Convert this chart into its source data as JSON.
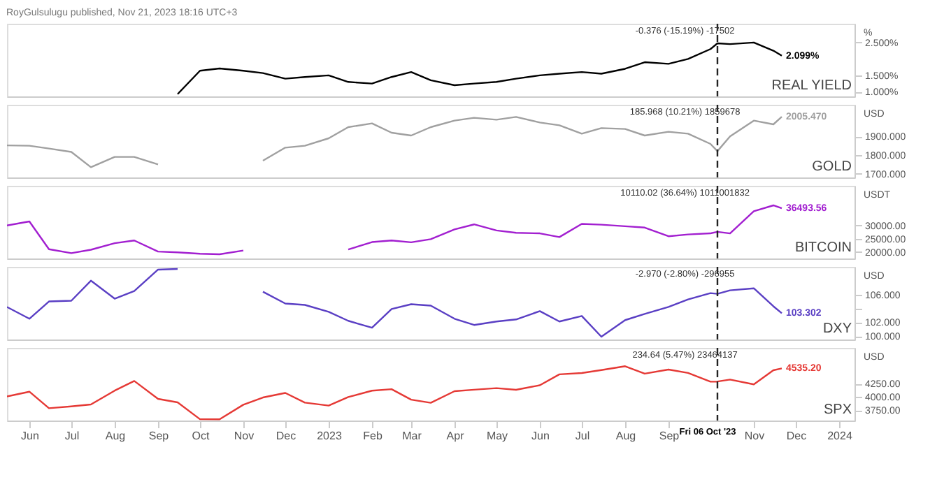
{
  "chart_data": [
    {
      "type": "line",
      "title": "REAL YIELD",
      "subtitle": "RoyGulsulugu published, Nov 21, 2023 18:16 UTC+3",
      "ylabel": "%",
      "tick_labels": "y",
      "xlim": [
        "2022-05-16",
        "2024-01-12"
      ],
      "ylim": [
        0.86,
        3.07
      ],
      "yticks": [
        {
          "value": 1.0,
          "label": "1.000%"
        },
        {
          "value": 1.5,
          "label": "1.500%"
        },
        {
          "value": 2.5,
          "label": "2.500%"
        }
      ],
      "x": [
        "2022-09-15",
        "2022-10-01",
        "2022-10-15",
        "2022-11-01",
        "2022-11-15",
        "2022-12-01",
        "2022-12-15",
        "2023-01-01",
        "2023-01-15",
        "2023-02-01",
        "2023-02-15",
        "2023-03-01",
        "2023-03-15",
        "2023-04-01",
        "2023-04-15",
        "2023-05-01",
        "2023-05-15",
        "2023-06-01",
        "2023-06-15",
        "2023-07-01",
        "2023-07-15",
        "2023-08-01",
        "2023-08-15",
        "2023-09-01",
        "2023-09-15",
        "2023-10-01",
        "2023-10-06",
        "2023-10-15",
        "2023-11-01",
        "2023-11-15",
        "2023-11-21"
      ],
      "series": [
        {
          "color": "#000000",
          "values": [
            0.93,
            1.64,
            1.71,
            1.64,
            1.57,
            1.4,
            1.45,
            1.5,
            1.3,
            1.25,
            1.45,
            1.6,
            1.35,
            1.2,
            1.25,
            1.3,
            1.4,
            1.5,
            1.55,
            1.6,
            1.55,
            1.7,
            1.9,
            1.85,
            2.0,
            2.3,
            2.475,
            2.45,
            2.5,
            2.25,
            2.099
          ],
          "value_labels": [
            null,
            null,
            null,
            null,
            null,
            null,
            null,
            null,
            null,
            null,
            null,
            null,
            null,
            null,
            null,
            null,
            null,
            null,
            null,
            null,
            null,
            null,
            null,
            null,
            null,
            null,
            null,
            null,
            null,
            null,
            "2.099%"
          ]
        }
      ],
      "ref_lines": [
        {
          "axis": "x",
          "value": "2023-10-06",
          "line_style": "dashed"
        }
      ],
      "annotations": [
        "-0.376 (-15.19%) -17502"
      ]
    },
    {
      "type": "line",
      "title": "GOLD",
      "ylabel": "USD",
      "tick_labels": "y",
      "xlim": [
        "2022-05-16",
        "2024-01-12"
      ],
      "ylim": [
        1680,
        2070
      ],
      "yticks": [
        {
          "value": 1700,
          "label": "1700.000"
        },
        {
          "value": 1800,
          "label": "1800.000"
        },
        {
          "value": 1900,
          "label": "1900.000"
        }
      ],
      "x": [
        "2022-05-16",
        "2022-06-01",
        "2022-06-15",
        "2022-07-01",
        "2022-07-15",
        "2022-08-01",
        "2022-08-15",
        "2022-09-01",
        "2022-09-15",
        "2022-10-01",
        "2022-10-15",
        "2022-11-01",
        "2022-11-15",
        "2022-12-01",
        "2022-12-15",
        "2023-01-01",
        "2023-01-15",
        "2023-02-01",
        "2023-02-15",
        "2023-03-01",
        "2023-03-15",
        "2023-04-01",
        "2023-04-15",
        "2023-05-01",
        "2023-05-15",
        "2023-06-01",
        "2023-06-15",
        "2023-07-01",
        "2023-07-15",
        "2023-08-01",
        "2023-08-15",
        "2023-09-01",
        "2023-09-15",
        "2023-10-01",
        "2023-10-06",
        "2023-10-15",
        "2023-11-01",
        "2023-11-15",
        "2023-11-21"
      ],
      "series": [
        {
          "color": "#a0a0a0",
          "values": [
            1852,
            1850,
            1835,
            1817,
            1735,
            1790,
            1790,
            1750,
            null,
            null,
            null,
            null,
            1770,
            1840,
            1850,
            1890,
            1950,
            1970,
            1920,
            1905,
            1950,
            1985,
            2000,
            1990,
            2005,
            1975,
            1960,
            1915,
            1945,
            1940,
            1905,
            1925,
            1915,
            1860,
            1821,
            1900,
            1985,
            1965,
            2005.47
          ],
          "value_labels": [
            null,
            null,
            null,
            null,
            null,
            null,
            null,
            null,
            null,
            null,
            null,
            null,
            null,
            null,
            null,
            null,
            null,
            null,
            null,
            null,
            null,
            null,
            null,
            null,
            null,
            null,
            null,
            null,
            null,
            null,
            null,
            null,
            null,
            null,
            null,
            null,
            null,
            null,
            "2005.470"
          ]
        }
      ],
      "ref_lines": [
        {
          "axis": "x",
          "value": "2023-10-06",
          "line_style": "dashed"
        }
      ],
      "annotations": [
        "185.968 (10.21%) 1859678"
      ]
    },
    {
      "type": "line",
      "title": "BITCOIN",
      "ylabel": "USDT",
      "tick_labels": "y",
      "xlim": [
        "2022-05-16",
        "2024-01-12"
      ],
      "ylim": [
        17500,
        45000
      ],
      "yticks": [
        {
          "value": 20000,
          "label": "20000.00"
        },
        {
          "value": 25000,
          "label": "25000.00"
        },
        {
          "value": 30000,
          "label": "30000.00"
        }
      ],
      "x": [
        "2022-05-16",
        "2022-06-01",
        "2022-06-15",
        "2022-07-01",
        "2022-07-15",
        "2022-08-01",
        "2022-08-15",
        "2022-09-01",
        "2022-09-15",
        "2022-10-01",
        "2022-10-15",
        "2022-11-01",
        "2022-11-15",
        "2022-12-01",
        "2022-12-15",
        "2023-01-01",
        "2023-01-15",
        "2023-02-01",
        "2023-02-15",
        "2023-03-01",
        "2023-03-15",
        "2023-04-01",
        "2023-04-15",
        "2023-05-01",
        "2023-05-15",
        "2023-06-01",
        "2023-06-15",
        "2023-07-01",
        "2023-07-15",
        "2023-08-01",
        "2023-08-15",
        "2023-09-01",
        "2023-09-15",
        "2023-10-01",
        "2023-10-06",
        "2023-10-15",
        "2023-11-01",
        "2023-11-15",
        "2023-11-21"
      ],
      "series": [
        {
          "color": "#a21fd0",
          "values": [
            30000,
            31500,
            21000,
            19500,
            20800,
            23300,
            24300,
            20100,
            19800,
            19300,
            19100,
            20500,
            null,
            null,
            null,
            null,
            20900,
            23700,
            24300,
            23600,
            24800,
            28500,
            30400,
            28100,
            27200,
            27000,
            25600,
            30600,
            30300,
            29700,
            29200,
            25900,
            26600,
            27000,
            27590,
            27000,
            35400,
            37600,
            36493.56
          ],
          "value_labels": [
            null,
            null,
            null,
            null,
            null,
            null,
            null,
            null,
            null,
            null,
            null,
            null,
            null,
            null,
            null,
            null,
            null,
            null,
            null,
            null,
            null,
            null,
            null,
            null,
            null,
            null,
            null,
            null,
            null,
            null,
            null,
            null,
            null,
            null,
            null,
            null,
            null,
            null,
            "36493.56"
          ]
        }
      ],
      "ref_lines": [
        {
          "axis": "x",
          "value": "2023-10-06",
          "line_style": "dashed"
        }
      ],
      "annotations": [
        "10110.02 (36.64%) 1011001832"
      ]
    },
    {
      "type": "line",
      "title": "DXY",
      "ylabel": "USD",
      "tick_labels": "y",
      "xlim": [
        "2022-05-16",
        "2024-01-12"
      ],
      "ylim": [
        99.5,
        110
      ],
      "yticks": [
        {
          "value": 100,
          "label": "100.000"
        },
        {
          "value": 102,
          "label": "102.000"
        },
        {
          "value": 104,
          "label": null
        },
        {
          "value": 106,
          "label": "106.000"
        }
      ],
      "x": [
        "2022-05-16",
        "2022-06-01",
        "2022-06-15",
        "2022-07-01",
        "2022-07-15",
        "2022-08-01",
        "2022-08-15",
        "2022-09-01",
        "2022-09-15",
        "2022-10-01",
        "2022-10-15",
        "2022-11-01",
        "2022-11-15",
        "2022-12-01",
        "2022-12-15",
        "2023-01-01",
        "2023-01-15",
        "2023-02-01",
        "2023-02-15",
        "2023-03-01",
        "2023-03-15",
        "2023-04-01",
        "2023-04-15",
        "2023-05-01",
        "2023-05-15",
        "2023-06-01",
        "2023-06-15",
        "2023-07-01",
        "2023-07-15",
        "2023-08-01",
        "2023-08-15",
        "2023-09-01",
        "2023-09-15",
        "2023-10-01",
        "2023-10-06",
        "2023-10-15",
        "2023-11-01",
        "2023-11-15",
        "2023-11-21"
      ],
      "series": [
        {
          "color": "#5a3fc4",
          "values": [
            104.2,
            102.5,
            105.0,
            105.1,
            108.0,
            105.4,
            106.5,
            109.6,
            109.7,
            null,
            null,
            null,
            106.4,
            104.7,
            104.5,
            103.5,
            102.2,
            101.2,
            103.9,
            104.6,
            104.4,
            102.5,
            101.6,
            102.1,
            102.4,
            103.6,
            102.1,
            102.9,
            99.9,
            102.3,
            103.2,
            104.2,
            105.3,
            106.2,
            106.1,
            106.6,
            106.9,
            104.3,
            103.302
          ],
          "value_labels": [
            null,
            null,
            null,
            null,
            null,
            null,
            null,
            null,
            null,
            null,
            null,
            null,
            null,
            null,
            null,
            null,
            null,
            null,
            null,
            null,
            null,
            null,
            null,
            null,
            null,
            null,
            null,
            null,
            null,
            null,
            null,
            null,
            null,
            null,
            null,
            null,
            null,
            null,
            "103.302"
          ]
        }
      ],
      "ref_lines": [
        {
          "axis": "x",
          "value": "2023-10-06",
          "line_style": "dashed"
        }
      ],
      "annotations": [
        "-2.970 (-2.80%) -296955"
      ]
    },
    {
      "type": "line",
      "title": "SPX",
      "ylabel": "USD",
      "xlim": [
        "2022-05-16",
        "2024-01-12"
      ],
      "ylim": [
        3560,
        4920
      ],
      "yticks": [
        {
          "value": 3750,
          "label": "3750.00"
        },
        {
          "value": 4000,
          "label": "4000.00"
        },
        {
          "value": 4250,
          "label": "4250.00"
        }
      ],
      "xticks": [
        {
          "value": "2022-06-01",
          "label": "Jun"
        },
        {
          "value": "2022-07-01",
          "label": "Jul"
        },
        {
          "value": "2022-08-01",
          "label": "Aug"
        },
        {
          "value": "2022-09-01",
          "label": "Sep"
        },
        {
          "value": "2022-10-01",
          "label": "Oct"
        },
        {
          "value": "2022-11-01",
          "label": "Nov"
        },
        {
          "value": "2022-12-01",
          "label": "Dec"
        },
        {
          "value": "2023-01-01",
          "label": "2023"
        },
        {
          "value": "2023-02-01",
          "label": "Feb"
        },
        {
          "value": "2023-03-01",
          "label": "Mar"
        },
        {
          "value": "2023-04-01",
          "label": "Apr"
        },
        {
          "value": "2023-05-01",
          "label": "May"
        },
        {
          "value": "2023-06-01",
          "label": "Jun"
        },
        {
          "value": "2023-07-01",
          "label": "Jul"
        },
        {
          "value": "2023-08-01",
          "label": "Aug"
        },
        {
          "value": "2023-09-01",
          "label": "Sep"
        },
        {
          "value": "2023-11-01",
          "label": "Nov"
        },
        {
          "value": "2023-12-01",
          "label": "Dec"
        },
        {
          "value": "2024-01-01",
          "label": "2024"
        }
      ],
      "x": [
        "2022-05-16",
        "2022-06-01",
        "2022-06-15",
        "2022-07-01",
        "2022-07-15",
        "2022-08-01",
        "2022-08-15",
        "2022-09-01",
        "2022-09-15",
        "2022-10-01",
        "2022-10-15",
        "2022-11-01",
        "2022-11-15",
        "2022-12-01",
        "2022-12-15",
        "2023-01-01",
        "2023-01-15",
        "2023-02-01",
        "2023-02-15",
        "2023-03-01",
        "2023-03-15",
        "2023-04-01",
        "2023-04-15",
        "2023-05-01",
        "2023-05-15",
        "2023-06-01",
        "2023-06-15",
        "2023-07-01",
        "2023-07-15",
        "2023-08-01",
        "2023-08-15",
        "2023-09-01",
        "2023-09-15",
        "2023-10-01",
        "2023-10-06",
        "2023-10-15",
        "2023-11-01",
        "2023-11-15",
        "2023-11-21"
      ],
      "series": [
        {
          "color": "#e53935",
          "values": [
            4010,
            4100,
            3790,
            3825,
            3860,
            4120,
            4300,
            3965,
            3900,
            3585,
            3583,
            3856,
            3991,
            4076,
            3895,
            3840,
            3999,
            4119,
            4147,
            3951,
            3892,
            4109,
            4137,
            4167,
            4136,
            4221,
            4425,
            4450,
            4505,
            4576,
            4437,
            4515,
            4450,
            4288,
            4290,
            4327,
            4237,
            4502,
            4535.2
          ],
          "value_labels": [
            null,
            null,
            null,
            null,
            null,
            null,
            null,
            null,
            null,
            null,
            null,
            null,
            null,
            null,
            null,
            null,
            null,
            null,
            null,
            null,
            null,
            null,
            null,
            null,
            null,
            null,
            null,
            null,
            null,
            null,
            null,
            null,
            null,
            null,
            null,
            null,
            null,
            null,
            "4535.20"
          ]
        }
      ],
      "ref_lines": [
        {
          "axis": "x",
          "value": "2023-10-06",
          "label": "Fri 06 Oct '23",
          "line_style": "dashed"
        }
      ],
      "annotations": [
        "234.64 (5.47%) 23464137"
      ]
    }
  ]
}
